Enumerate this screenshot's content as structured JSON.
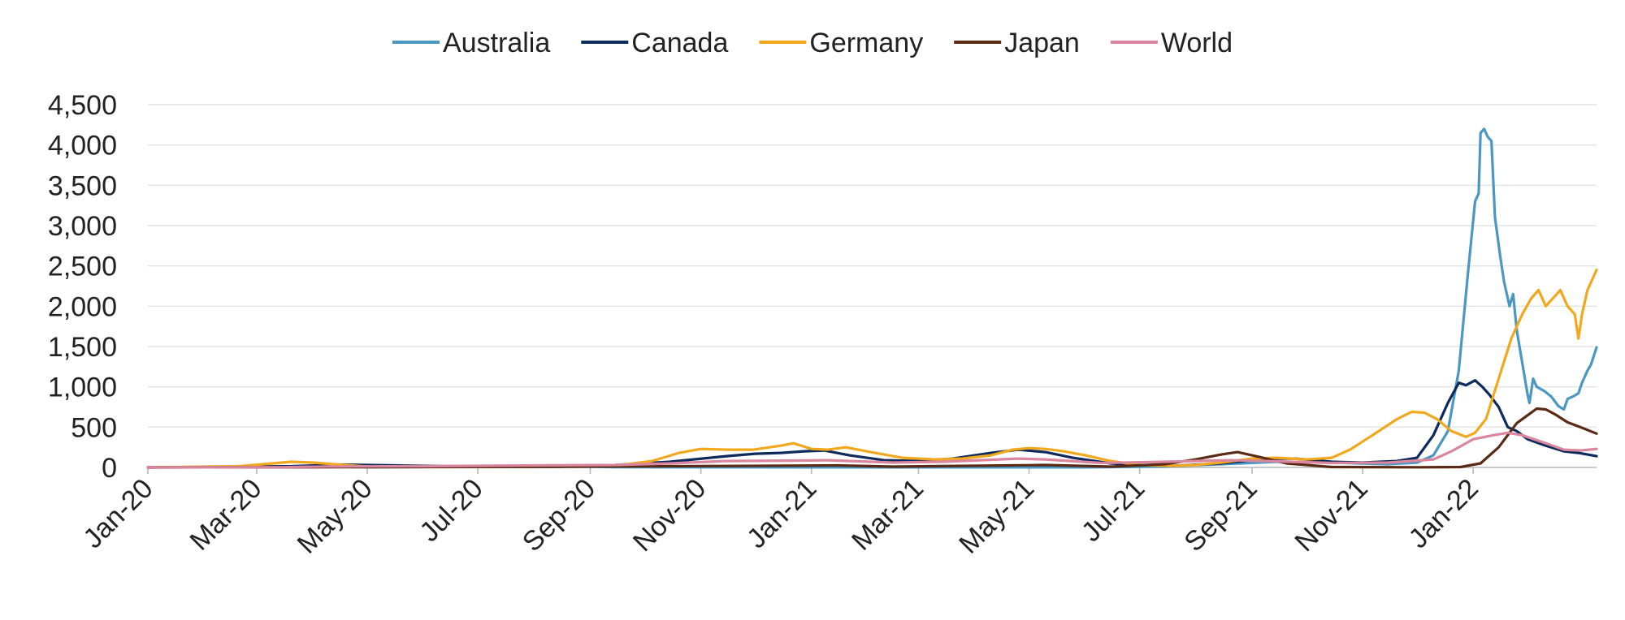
{
  "chart_data": {
    "type": "line",
    "title": "",
    "xlabel": "",
    "ylabel": "",
    "ylim": [
      0,
      4500
    ],
    "xlim": [
      "2020-01-01",
      "2022-03-10"
    ],
    "y_ticks": [
      "0",
      "500",
      "1,000",
      "1,500",
      "2,000",
      "2,500",
      "3,000",
      "3,500",
      "4,000",
      "4,500"
    ],
    "x_ticks": [
      {
        "date": "2020-01-01",
        "label": "Jan-20"
      },
      {
        "date": "2020-03-01",
        "label": "Mar-20"
      },
      {
        "date": "2020-05-01",
        "label": "May-20"
      },
      {
        "date": "2020-07-01",
        "label": "Jul-20"
      },
      {
        "date": "2020-09-01",
        "label": "Sep-20"
      },
      {
        "date": "2020-11-01",
        "label": "Nov-20"
      },
      {
        "date": "2021-01-01",
        "label": "Jan-21"
      },
      {
        "date": "2021-03-01",
        "label": "Mar-21"
      },
      {
        "date": "2021-05-01",
        "label": "May-21"
      },
      {
        "date": "2021-07-01",
        "label": "Jul-21"
      },
      {
        "date": "2021-09-01",
        "label": "Sep-21"
      },
      {
        "date": "2021-11-01",
        "label": "Nov-21"
      },
      {
        "date": "2022-01-01",
        "label": "Jan-22"
      }
    ],
    "grid": true,
    "legend_position": "top-center",
    "series": [
      {
        "name": "Australia",
        "color": "#4a97c2",
        "points": [
          [
            "2020-01-01",
            0
          ],
          [
            "2020-03-15",
            5
          ],
          [
            "2020-04-01",
            15
          ],
          [
            "2020-05-01",
            2
          ],
          [
            "2020-07-15",
            10
          ],
          [
            "2020-08-10",
            18
          ],
          [
            "2020-09-15",
            4
          ],
          [
            "2021-01-01",
            1
          ],
          [
            "2021-06-01",
            1
          ],
          [
            "2021-07-15",
            12
          ],
          [
            "2021-08-15",
            40
          ],
          [
            "2021-09-15",
            70
          ],
          [
            "2021-10-15",
            60
          ],
          [
            "2021-11-15",
            40
          ],
          [
            "2021-12-01",
            60
          ],
          [
            "2021-12-10",
            150
          ],
          [
            "2021-12-18",
            450
          ],
          [
            "2021-12-24",
            1200
          ],
          [
            "2021-12-29",
            2400
          ],
          [
            "2022-01-02",
            3300
          ],
          [
            "2022-01-04",
            3400
          ],
          [
            "2022-01-05",
            4150
          ],
          [
            "2022-01-07",
            4200
          ],
          [
            "2022-01-09",
            4100
          ],
          [
            "2022-01-11",
            4050
          ],
          [
            "2022-01-13",
            3100
          ],
          [
            "2022-01-16",
            2600
          ],
          [
            "2022-01-18",
            2300
          ],
          [
            "2022-01-21",
            2000
          ],
          [
            "2022-01-23",
            2150
          ],
          [
            "2022-01-25",
            1700
          ],
          [
            "2022-01-28",
            1300
          ],
          [
            "2022-01-31",
            900
          ],
          [
            "2022-02-01",
            800
          ],
          [
            "2022-02-03",
            1100
          ],
          [
            "2022-02-05",
            1000
          ],
          [
            "2022-02-09",
            950
          ],
          [
            "2022-02-13",
            880
          ],
          [
            "2022-02-17",
            760
          ],
          [
            "2022-02-20",
            720
          ],
          [
            "2022-02-22",
            850
          ],
          [
            "2022-02-25",
            880
          ],
          [
            "2022-02-28",
            920
          ],
          [
            "2022-03-02",
            1050
          ],
          [
            "2022-03-05",
            1200
          ],
          [
            "2022-03-07",
            1280
          ],
          [
            "2022-03-10",
            1490
          ]
        ]
      },
      {
        "name": "Canada",
        "color": "#0c2a5c",
        "points": [
          [
            "2020-01-01",
            0
          ],
          [
            "2020-03-20",
            15
          ],
          [
            "2020-04-15",
            35
          ],
          [
            "2020-05-15",
            25
          ],
          [
            "2020-07-01",
            10
          ],
          [
            "2020-08-15",
            10
          ],
          [
            "2020-09-15",
            30
          ],
          [
            "2020-10-15",
            70
          ],
          [
            "2020-11-15",
            140
          ],
          [
            "2020-12-01",
            170
          ],
          [
            "2020-12-15",
            180
          ],
          [
            "2020-12-28",
            200
          ],
          [
            "2021-01-08",
            210
          ],
          [
            "2021-01-22",
            150
          ],
          [
            "2021-02-10",
            90
          ],
          [
            "2021-03-01",
            80
          ],
          [
            "2021-03-20",
            110
          ],
          [
            "2021-04-10",
            180
          ],
          [
            "2021-04-25",
            220
          ],
          [
            "2021-05-10",
            190
          ],
          [
            "2021-05-25",
            120
          ],
          [
            "2021-06-15",
            50
          ],
          [
            "2021-07-01",
            30
          ],
          [
            "2021-07-20",
            20
          ],
          [
            "2021-08-15",
            50
          ],
          [
            "2021-09-10",
            110
          ],
          [
            "2021-09-25",
            110
          ],
          [
            "2021-10-15",
            70
          ],
          [
            "2021-11-01",
            60
          ],
          [
            "2021-11-20",
            80
          ],
          [
            "2021-12-01",
            120
          ],
          [
            "2021-12-10",
            400
          ],
          [
            "2021-12-18",
            800
          ],
          [
            "2021-12-24",
            1050
          ],
          [
            "2021-12-28",
            1020
          ],
          [
            "2022-01-02",
            1080
          ],
          [
            "2022-01-06",
            1000
          ],
          [
            "2022-01-10",
            900
          ],
          [
            "2022-01-15",
            750
          ],
          [
            "2022-01-20",
            500
          ],
          [
            "2022-01-25",
            450
          ],
          [
            "2022-01-31",
            350
          ],
          [
            "2022-02-10",
            270
          ],
          [
            "2022-02-20",
            200
          ],
          [
            "2022-02-28",
            180
          ],
          [
            "2022-03-05",
            160
          ],
          [
            "2022-03-10",
            140
          ]
        ]
      },
      {
        "name": "Germany",
        "color": "#f2a81d",
        "points": [
          [
            "2020-01-01",
            0
          ],
          [
            "2020-02-20",
            15
          ],
          [
            "2020-03-10",
            50
          ],
          [
            "2020-03-20",
            70
          ],
          [
            "2020-04-01",
            60
          ],
          [
            "2020-04-15",
            35
          ],
          [
            "2020-05-01",
            10
          ],
          [
            "2020-06-15",
            5
          ],
          [
            "2020-08-01",
            10
          ],
          [
            "2020-09-01",
            15
          ],
          [
            "2020-09-20",
            35
          ],
          [
            "2020-10-05",
            80
          ],
          [
            "2020-10-20",
            180
          ],
          [
            "2020-11-01",
            230
          ],
          [
            "2020-11-15",
            220
          ],
          [
            "2020-11-30",
            220
          ],
          [
            "2020-12-15",
            270
          ],
          [
            "2020-12-22",
            300
          ],
          [
            "2021-01-01",
            230
          ],
          [
            "2021-01-10",
            220
          ],
          [
            "2021-01-20",
            250
          ],
          [
            "2021-02-05",
            180
          ],
          [
            "2021-02-20",
            120
          ],
          [
            "2021-03-10",
            100
          ],
          [
            "2021-03-25",
            110
          ],
          [
            "2021-04-10",
            150
          ],
          [
            "2021-04-22",
            220
          ],
          [
            "2021-05-01",
            240
          ],
          [
            "2021-05-10",
            230
          ],
          [
            "2021-05-20",
            200
          ],
          [
            "2021-06-01",
            150
          ],
          [
            "2021-06-15",
            80
          ],
          [
            "2021-07-01",
            30
          ],
          [
            "2021-07-20",
            20
          ],
          [
            "2021-08-01",
            30
          ],
          [
            "2021-08-15",
            60
          ],
          [
            "2021-09-01",
            110
          ],
          [
            "2021-09-15",
            120
          ],
          [
            "2021-10-01",
            100
          ],
          [
            "2021-10-15",
            120
          ],
          [
            "2021-10-25",
            220
          ],
          [
            "2021-11-05",
            380
          ],
          [
            "2021-11-20",
            600
          ],
          [
            "2021-11-28",
            690
          ],
          [
            "2021-12-05",
            680
          ],
          [
            "2021-12-12",
            600
          ],
          [
            "2021-12-20",
            450
          ],
          [
            "2021-12-28",
            380
          ],
          [
            "2022-01-02",
            430
          ],
          [
            "2022-01-08",
            600
          ],
          [
            "2022-01-15",
            1100
          ],
          [
            "2022-01-22",
            1600
          ],
          [
            "2022-01-28",
            1900
          ],
          [
            "2022-02-02",
            2100
          ],
          [
            "2022-02-06",
            2200
          ],
          [
            "2022-02-10",
            2000
          ],
          [
            "2022-02-14",
            2100
          ],
          [
            "2022-02-18",
            2200
          ],
          [
            "2022-02-22",
            2000
          ],
          [
            "2022-02-26",
            1900
          ],
          [
            "2022-02-28",
            1600
          ],
          [
            "2022-03-02",
            1900
          ],
          [
            "2022-03-05",
            2200
          ],
          [
            "2022-03-08",
            2350
          ],
          [
            "2022-03-10",
            2450
          ]
        ]
      },
      {
        "name": "Japan",
        "color": "#5a2a14",
        "points": [
          [
            "2020-01-01",
            0
          ],
          [
            "2020-04-15",
            3
          ],
          [
            "2020-08-15",
            8
          ],
          [
            "2021-01-15",
            25
          ],
          [
            "2021-02-15",
            10
          ],
          [
            "2021-05-10",
            30
          ],
          [
            "2021-06-15",
            10
          ],
          [
            "2021-07-15",
            40
          ],
          [
            "2021-08-01",
            100
          ],
          [
            "2021-08-15",
            160
          ],
          [
            "2021-08-24",
            190
          ],
          [
            "2021-09-05",
            130
          ],
          [
            "2021-09-20",
            50
          ],
          [
            "2021-10-15",
            5
          ],
          [
            "2021-12-01",
            2
          ],
          [
            "2021-12-25",
            5
          ],
          [
            "2022-01-05",
            50
          ],
          [
            "2022-01-15",
            250
          ],
          [
            "2022-01-25",
            550
          ],
          [
            "2022-02-05",
            730
          ],
          [
            "2022-02-10",
            720
          ],
          [
            "2022-02-15",
            660
          ],
          [
            "2022-02-22",
            560
          ],
          [
            "2022-03-01",
            500
          ],
          [
            "2022-03-10",
            420
          ]
        ]
      },
      {
        "name": "World",
        "color": "#d9869e",
        "points": [
          [
            "2020-01-01",
            0
          ],
          [
            "2020-03-15",
            3
          ],
          [
            "2020-04-10",
            12
          ],
          [
            "2020-06-01",
            15
          ],
          [
            "2020-08-01",
            25
          ],
          [
            "2020-09-15",
            30
          ],
          [
            "2020-10-15",
            50
          ],
          [
            "2020-11-15",
            80
          ],
          [
            "2020-12-20",
            85
          ],
          [
            "2021-01-10",
            90
          ],
          [
            "2021-02-15",
            60
          ],
          [
            "2021-03-15",
            70
          ],
          [
            "2021-04-25",
            110
          ],
          [
            "2021-05-10",
            100
          ],
          [
            "2021-06-10",
            55
          ],
          [
            "2021-07-15",
            70
          ],
          [
            "2021-08-20",
            90
          ],
          [
            "2021-09-15",
            75
          ],
          [
            "2021-10-15",
            55
          ],
          [
            "2021-11-15",
            60
          ],
          [
            "2021-12-10",
            100
          ],
          [
            "2021-12-20",
            200
          ],
          [
            "2022-01-01",
            350
          ],
          [
            "2022-01-12",
            400
          ],
          [
            "2022-01-20",
            430
          ],
          [
            "2022-01-28",
            400
          ],
          [
            "2022-02-10",
            300
          ],
          [
            "2022-02-20",
            220
          ],
          [
            "2022-03-01",
            210
          ],
          [
            "2022-03-10",
            230
          ]
        ]
      }
    ]
  }
}
